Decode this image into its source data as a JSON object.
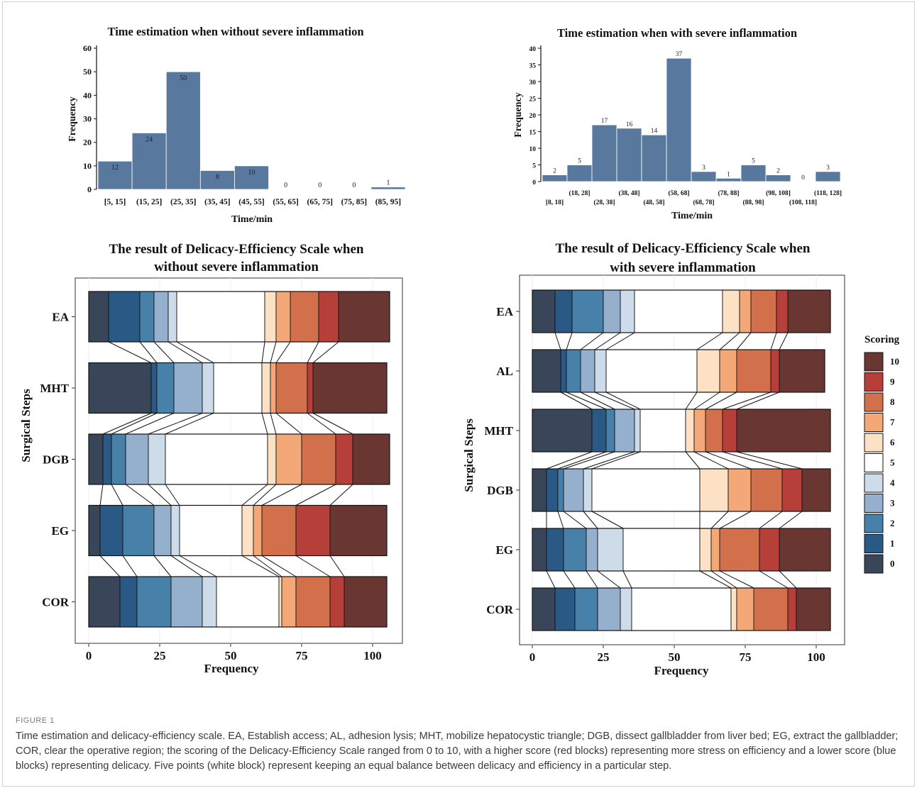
{
  "figure": {
    "label": "FIGURE 1",
    "caption": "Time estimation and delicacy-efficiency scale. EA, Establish access; AL, adhesion lysis; MHT, mobilize hepatocystic triangle; DGB, dissect gallbladder from liver bed; EG, extract the gallbladder; COR, clear the operative region; the scoring of the Delicacy-Efficiency Scale ranged from 0 to 10, with a higher score (red blocks) representing more stress on efficiency and a lower score (blue blocks) representing delicacy. Five points (white block) represent keeping an equal balance between delicacy and efficiency in a particular step."
  },
  "colors": {
    "hist_bar": "#58789e",
    "score": [
      "#39465a",
      "#2b5985",
      "#4781a9",
      "#94b0cd",
      "#cedcea",
      "#ffffff",
      "#fde1c4",
      "#f5a877",
      "#d3704c",
      "#b63f3a",
      "#6a3631"
    ]
  },
  "chart_data": [
    {
      "type": "bar",
      "title": "Time estimation when without severe inflammation",
      "xlabel": "Time/min",
      "ylabel": "Frequency",
      "ylim": [
        0,
        60
      ],
      "yticks": [
        "0",
        "10",
        "20",
        "30",
        "40",
        "50",
        "60"
      ],
      "categories": [
        "[5, 15]",
        "(15, 25]",
        "(25, 35]",
        "(35, 45]",
        "(45, 55]",
        "(55, 65]",
        "(65, 75]",
        "(75, 85]",
        "(85, 95]"
      ],
      "values": [
        12,
        24,
        50,
        8,
        10,
        0,
        0,
        0,
        1
      ],
      "value_labels": [
        "12",
        "24",
        "50",
        "8",
        "10",
        "0",
        "0",
        "0",
        "1"
      ]
    },
    {
      "type": "bar",
      "title": "Time estimation when with severe inflammation",
      "xlabel": "Time/min",
      "ylabel": "Frequency",
      "ylim": [
        0,
        40
      ],
      "yticks": [
        "0",
        "5",
        "10",
        "15",
        "20",
        "25",
        "30",
        "35",
        "40"
      ],
      "categories": [
        "[8, 18]",
        "(18, 28]",
        "(28, 38]",
        "(38, 48]",
        "(48, 58]",
        "(58, 68]",
        "(68, 78]",
        "(78, 88]",
        "(88, 98]",
        "(98, 108]",
        "(108, 118]",
        "(118, 128]"
      ],
      "values": [
        2,
        5,
        17,
        16,
        14,
        37,
        3,
        1,
        5,
        2,
        0,
        3
      ],
      "value_labels": [
        "2",
        "5",
        "17",
        "16",
        "14",
        "37",
        "3",
        "1",
        "5",
        "2",
        "0",
        "3"
      ]
    },
    {
      "type": "bar",
      "orientation": "horizontal-stacked",
      "title_lines": [
        "The result of Delicacy-Efficiency Scale when",
        "without severe inflammation"
      ],
      "xlabel": "Frequency",
      "ylabel": "Surgical Steps",
      "xlim": [
        0,
        105
      ],
      "xticks": [
        "0",
        "25",
        "50",
        "75",
        "100"
      ],
      "categories": [
        "EA",
        "MHT",
        "DGB",
        "EG",
        "COR"
      ],
      "score_levels": [
        "0",
        "1",
        "2",
        "3",
        "4",
        "5",
        "6",
        "7",
        "8",
        "9",
        "10"
      ],
      "counts": [
        [
          7,
          11,
          5,
          5,
          3,
          31,
          4,
          5,
          10,
          7,
          18
        ],
        [
          22,
          2,
          6,
          10,
          4,
          17,
          3,
          2,
          11,
          2,
          26
        ],
        [
          5,
          3,
          5,
          8,
          6,
          36,
          3,
          9,
          12,
          6,
          13
        ],
        [
          4,
          8,
          11,
          6,
          3,
          22,
          4,
          3,
          12,
          12,
          20
        ],
        [
          11,
          6,
          12,
          11,
          5,
          22,
          1,
          5,
          12,
          5,
          15
        ]
      ]
    },
    {
      "type": "bar",
      "orientation": "horizontal-stacked",
      "title_lines": [
        "The result of Delicacy-Efficiency Scale when",
        "with severe inflammation"
      ],
      "xlabel": "Frequency",
      "ylabel": "Surgical Steps",
      "xlim": [
        0,
        105
      ],
      "xticks": [
        "0",
        "25",
        "50",
        "75",
        "100"
      ],
      "categories": [
        "EA",
        "AL",
        "MHT",
        "DGB",
        "EG",
        "COR"
      ],
      "score_levels": [
        "0",
        "1",
        "2",
        "3",
        "4",
        "5",
        "6",
        "7",
        "8",
        "9",
        "10"
      ],
      "counts": [
        [
          8,
          6,
          11,
          6,
          5,
          31,
          6,
          4,
          9,
          4,
          15
        ],
        [
          10,
          2,
          5,
          5,
          4,
          32,
          8,
          6,
          12,
          3,
          16
        ],
        [
          21,
          5,
          3,
          7,
          2,
          16,
          3,
          4,
          6,
          5,
          33
        ],
        [
          5,
          4,
          2,
          7,
          3,
          38,
          10,
          8,
          11,
          7,
          10
        ],
        [
          5,
          6,
          8,
          4,
          9,
          27,
          4,
          3,
          14,
          7,
          18
        ],
        [
          8,
          7,
          8,
          8,
          4,
          35,
          2,
          6,
          12,
          3,
          12
        ]
      ],
      "legend": {
        "title": "Scoring",
        "position": "right",
        "items": [
          "10",
          "9",
          "8",
          "7",
          "6",
          "5",
          "4",
          "3",
          "2",
          "1",
          "0"
        ]
      }
    }
  ]
}
